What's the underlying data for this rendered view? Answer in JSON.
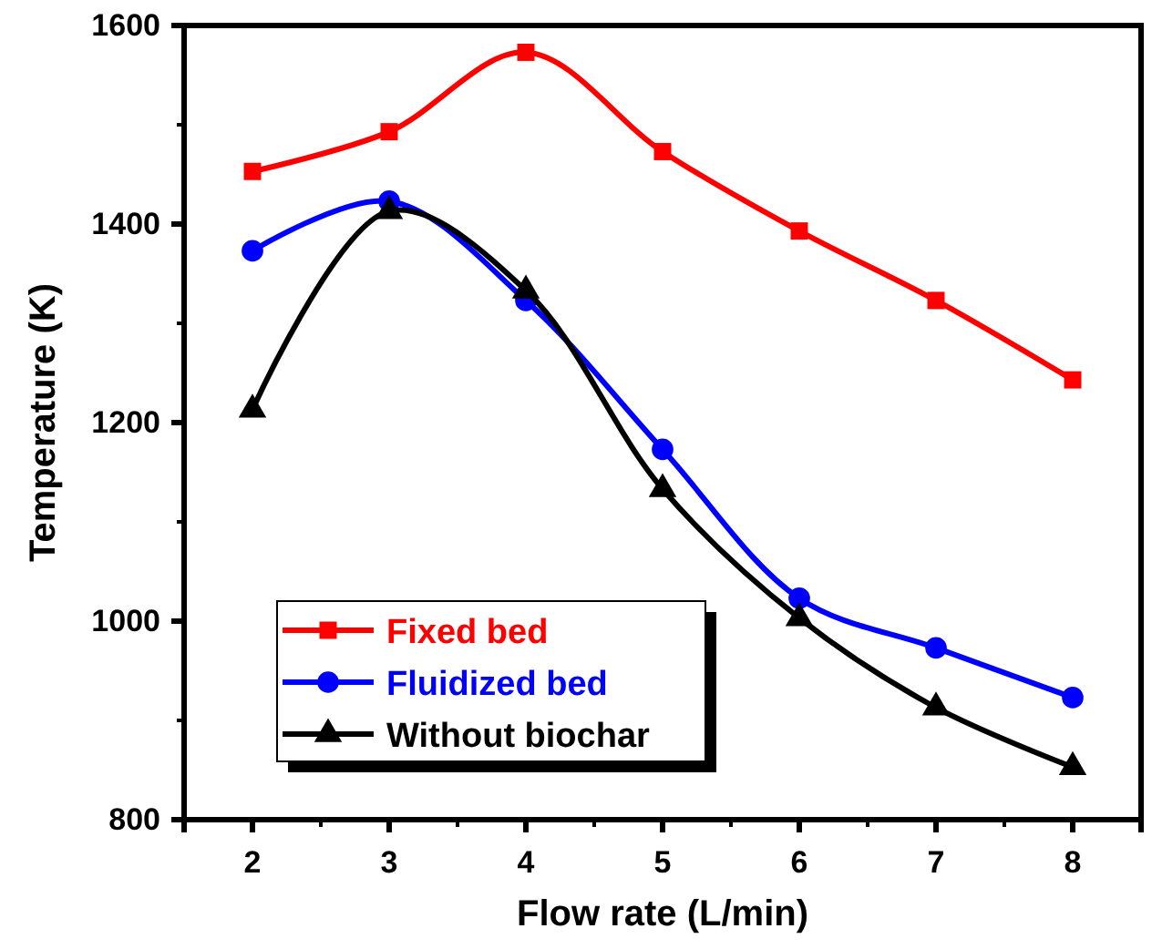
{
  "chart_data": {
    "type": "line",
    "xlabel": "Flow rate (L/min)",
    "ylabel": "Temperature (K)",
    "x": [
      2,
      3,
      4,
      5,
      6,
      7,
      8
    ],
    "xlim": [
      1.5,
      8.5
    ],
    "xticks": [
      2,
      3,
      4,
      5,
      6,
      7,
      8
    ],
    "ylim": [
      800,
      1600
    ],
    "yticks": [
      800,
      1000,
      1200,
      1400,
      1600
    ],
    "grid": false,
    "legend": "bottom left",
    "line_style": "solid",
    "series": [
      {
        "name": "Fixed bed",
        "color": "#ff0000",
        "marker": "square",
        "values": [
          1453,
          1493,
          1573,
          1473,
          1393,
          1323,
          1243
        ]
      },
      {
        "name": "Fluidized bed",
        "color": "#0000ff",
        "marker": "circle",
        "values": [
          1373,
          1423,
          1323,
          1173,
          1023,
          973,
          923
        ]
      },
      {
        "name": "Without biochar",
        "color": "#000000",
        "marker": "triangle",
        "values": [
          1213,
          1413,
          1333,
          1133,
          1003,
          913,
          853
        ]
      }
    ]
  }
}
